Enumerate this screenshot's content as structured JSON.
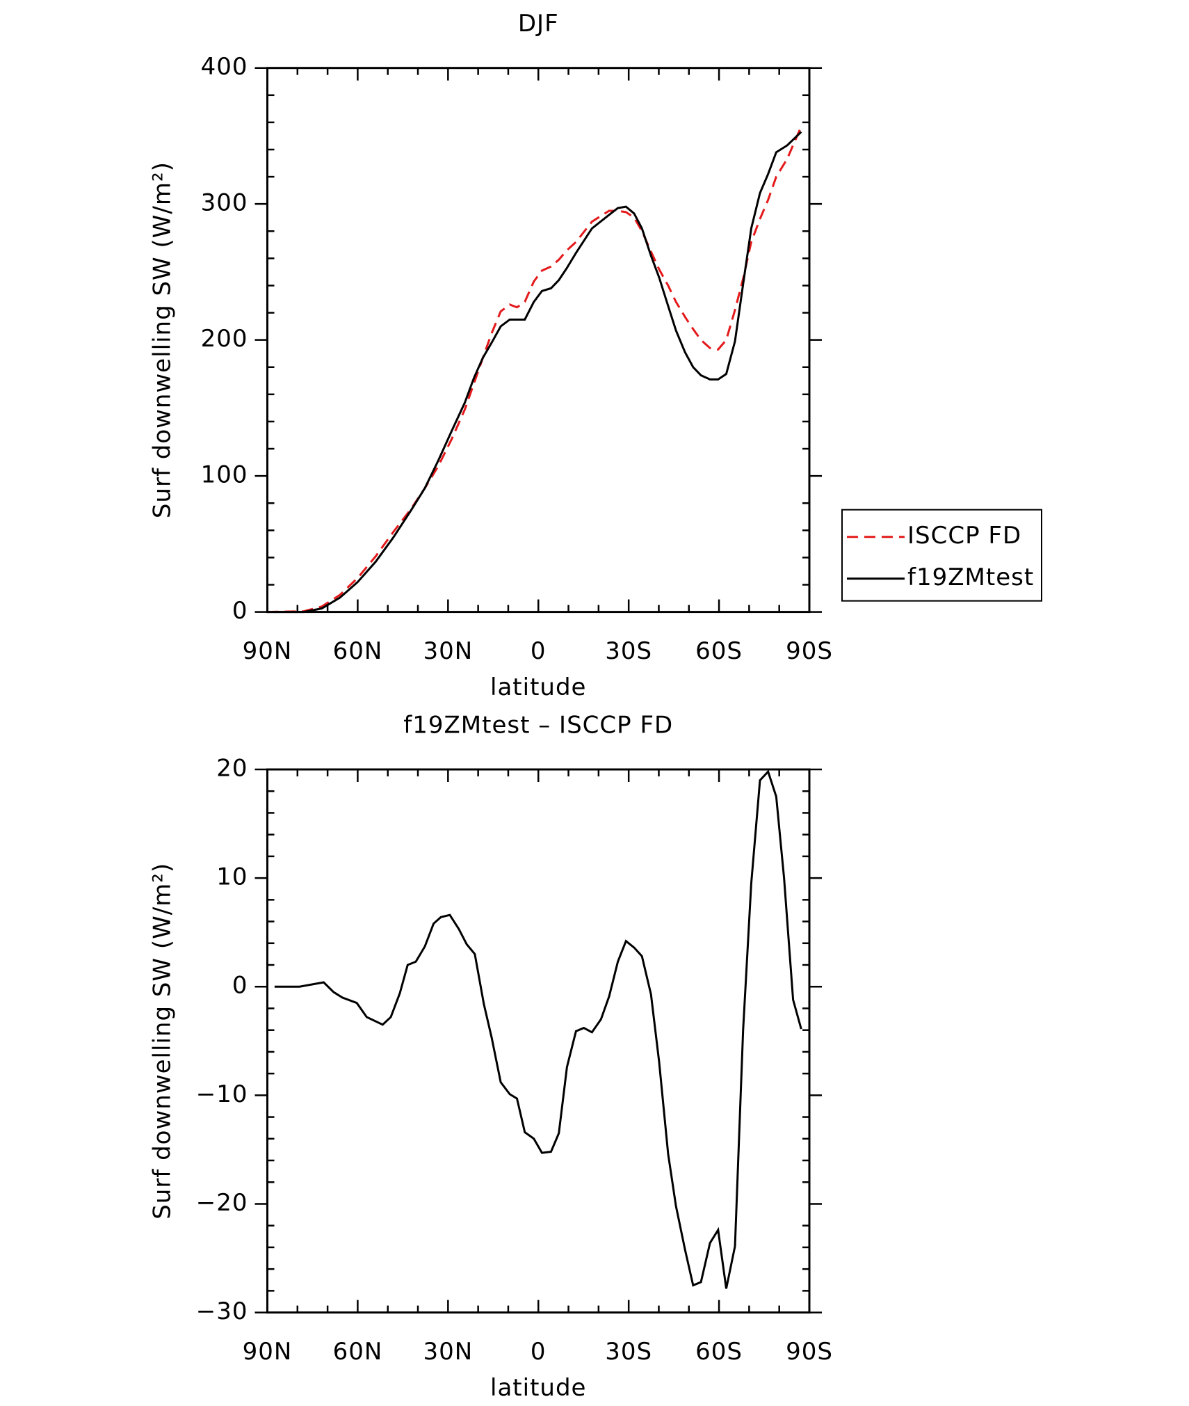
{
  "chart_data": [
    {
      "type": "line",
      "title": "DJF",
      "xlabel": "latitude",
      "ylabel": "Surf downwelling SW (W/m²)",
      "x": [
        90,
        77.8,
        71.9,
        65.9,
        60,
        54,
        48.1,
        42.2,
        37.7,
        33.3,
        28.8,
        24.4,
        21.4,
        18.4,
        15.5,
        12.5,
        9.5,
        7.1,
        4.5,
        1.5,
        -1.2,
        -4.2,
        -6.8,
        -9.5,
        -12.5,
        -17.8,
        -23.5,
        -26.4,
        -29.1,
        -31.8,
        -34.4,
        -37.4,
        -40.1,
        -43.1,
        -45.7,
        -48.7,
        -51.4,
        -54.0,
        -57.0,
        -59.7,
        -62.4,
        -65.3,
        -68.0,
        -70.7,
        -73.6,
        -76.3,
        -79.0,
        -82.6,
        -87.3
      ],
      "series": [
        {
          "name": "ISCCP FD",
          "color": "#e41a1c",
          "dash": true,
          "values": [
            0,
            0.5,
            4,
            12.5,
            25,
            41,
            59,
            76,
            91,
            107,
            127,
            149,
            168,
            187,
            205,
            221,
            226,
            224,
            228,
            243,
            251,
            254,
            259,
            266,
            272,
            287,
            295,
            295,
            294,
            290,
            280,
            265,
            252,
            240,
            228,
            217,
            208,
            200,
            194,
            193,
            200,
            222,
            245,
            272,
            289,
            303,
            320,
            333,
            357
          ]
        },
        {
          "name": "f19ZMtest",
          "color": "#000000",
          "dash": false,
          "values": [
            0,
            0,
            2.6,
            10.5,
            22,
            37,
            55,
            75,
            91,
            111,
            133,
            154,
            172,
            187,
            198,
            210,
            215,
            215,
            215,
            228,
            236,
            238,
            244,
            253,
            264,
            282,
            292,
            297,
            298,
            293,
            282,
            262,
            246,
            225,
            207,
            191,
            180,
            174,
            171,
            171,
            175,
            199,
            241,
            282,
            308,
            322,
            338,
            343,
            353
          ]
        }
      ],
      "xlim": [
        90,
        -90
      ],
      "xticks": [
        {
          "value": 90,
          "label": "90N"
        },
        {
          "value": 60,
          "label": "60N"
        },
        {
          "value": 30,
          "label": "30N"
        },
        0,
        {
          "value": -30,
          "label": "30S"
        },
        {
          "value": -60,
          "label": "60S"
        },
        {
          "value": -90,
          "label": "90S"
        }
      ],
      "ylim": [
        0,
        400
      ],
      "yticks": [
        0,
        100,
        200,
        300,
        400
      ],
      "legend": "right"
    },
    {
      "type": "line",
      "title": "f19ZMtest – ISCCP FD",
      "xlabel": "latitude",
      "ylabel": "Surf downwelling SW (W/m²)",
      "x": [
        87.6,
        79.3,
        71.3,
        68.0,
        65.1,
        60.3,
        57.0,
        51.7,
        49.0,
        46.0,
        43.4,
        40.7,
        37.7,
        34.8,
        32.4,
        29.4,
        26.4,
        23.8,
        21.1,
        18.1,
        15.5,
        12.5,
        9.5,
        7.1,
        4.5,
        1.5,
        -1.2,
        -4.2,
        -6.8,
        -9.5,
        -12.5,
        -15.1,
        -17.8,
        -20.8,
        -23.5,
        -26.4,
        -29.1,
        -31.8,
        -34.4,
        -37.4,
        -40.1,
        -43.1,
        -45.7,
        -48.7,
        -51.4,
        -54.0,
        -57.0,
        -59.7,
        -62.4,
        -65.3,
        -68.0,
        -70.7,
        -73.6,
        -76.3,
        -79.0,
        -81.6,
        -84.6,
        -87.3
      ],
      "series": [
        {
          "color": "#000000",
          "dash": false,
          "values": [
            0,
            0,
            0.4,
            -0.5,
            -1.0,
            -1.5,
            -2.8,
            -3.5,
            -2.8,
            -0.6,
            2.0,
            2.3,
            3.7,
            5.8,
            6.4,
            6.6,
            5.3,
            3.9,
            3.0,
            -1.6,
            -4.7,
            -8.8,
            -9.9,
            -10.3,
            -13.4,
            -14.0,
            -15.3,
            -15.2,
            -13.5,
            -7.4,
            -4.1,
            -3.8,
            -4.2,
            -3.0,
            -0.9,
            2.3,
            4.2,
            3.6,
            2.8,
            -0.7,
            -6.9,
            -15.4,
            -20.2,
            -24.2,
            -27.5,
            -27.2,
            -23.6,
            -22.4,
            -27.8,
            -23.9,
            -4.0,
            9.5,
            19.0,
            19.8,
            17.5,
            10.0,
            -1.2,
            -3.9
          ]
        }
      ],
      "xlim": [
        90,
        -90
      ],
      "xticks": [
        {
          "value": 90,
          "label": "90N"
        },
        {
          "value": 60,
          "label": "60N"
        },
        {
          "value": 30,
          "label": "30N"
        },
        0,
        {
          "value": -30,
          "label": "30S"
        },
        {
          "value": -60,
          "label": "60S"
        },
        {
          "value": -90,
          "label": "90S"
        }
      ],
      "ylim": [
        -30,
        20
      ],
      "yticks": [
        {
          "value": -30,
          "label": "−30"
        },
        {
          "value": -20,
          "label": "−20"
        },
        {
          "value": -10,
          "label": "−10"
        },
        0,
        10,
        20
      ]
    }
  ]
}
